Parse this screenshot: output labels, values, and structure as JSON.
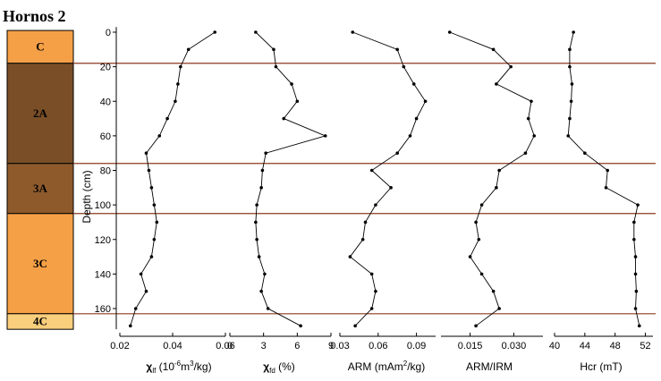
{
  "site_title": "Hornos 2",
  "y_axis": {
    "label": "Depth (cm)",
    "range": [
      -5,
      172
    ],
    "ticks": [
      0,
      20,
      40,
      60,
      80,
      100,
      120,
      140,
      160
    ]
  },
  "horizons": [
    {
      "label": "C",
      "top": -1,
      "bottom": 18,
      "color": "#F5A046"
    },
    {
      "label": "2A",
      "top": 18,
      "bottom": 76,
      "color": "#7A4E27"
    },
    {
      "label": "3A",
      "top": 76,
      "bottom": 105,
      "color": "#8E5A2C"
    },
    {
      "label": "3C",
      "top": 105,
      "bottom": 163,
      "color": "#F5A046"
    },
    {
      "label": "4C",
      "top": 163,
      "bottom": 172,
      "color": "#F9CE7C"
    }
  ],
  "chart_data": [
    {
      "type": "line",
      "xlabel_parts": [
        "χ",
        "lf",
        " (10",
        "-6",
        "m",
        "3",
        "/kg)"
      ],
      "xlim": [
        0.02,
        0.06
      ],
      "xticks": [
        "0.02",
        "0.04",
        "0.06"
      ],
      "xtick_values": [
        0.02,
        0.04,
        0.06
      ],
      "y": [
        0,
        10,
        20,
        30,
        40,
        50,
        60,
        70,
        80,
        90,
        100,
        110,
        120,
        130,
        140,
        150,
        160,
        170
      ],
      "x": [
        0.056,
        0.046,
        0.043,
        0.042,
        0.041,
        0.038,
        0.035,
        0.03,
        0.031,
        0.032,
        0.033,
        0.034,
        0.033,
        0.032,
        0.028,
        0.03,
        0.026,
        0.024
      ]
    },
    {
      "type": "line",
      "xlabel_parts": [
        "χ",
        "fd",
        " (%)"
      ],
      "xlim": [
        0,
        9
      ],
      "xticks": [
        "0",
        "3",
        "6",
        "9"
      ],
      "xtick_values": [
        0,
        3,
        6,
        9
      ],
      "y": [
        0,
        10,
        20,
        30,
        40,
        50,
        60,
        70,
        80,
        90,
        100,
        110,
        120,
        130,
        140,
        150,
        160,
        170
      ],
      "x": [
        2.3,
        3.9,
        4.1,
        5.5,
        6.0,
        4.8,
        8.5,
        3.2,
        2.9,
        2.8,
        2.4,
        2.3,
        2.4,
        2.6,
        3.1,
        2.8,
        3.4,
        6.3
      ]
    },
    {
      "type": "line",
      "xlabel_parts": [
        "ARM (mAm",
        "2",
        "/kg)"
      ],
      "xlim": [
        0.03,
        0.105
      ],
      "xticks": [
        "0.03",
        "0.06",
        "0.09"
      ],
      "xtick_values": [
        0.03,
        0.06,
        0.09
      ],
      "y": [
        0,
        10,
        20,
        30,
        40,
        50,
        60,
        70,
        80,
        90,
        100,
        110,
        120,
        130,
        140,
        150,
        160,
        170
      ],
      "x": [
        0.04,
        0.075,
        0.08,
        0.088,
        0.097,
        0.09,
        0.085,
        0.075,
        0.055,
        0.07,
        0.058,
        0.05,
        0.048,
        0.038,
        0.055,
        0.058,
        0.055,
        0.042
      ]
    },
    {
      "type": "line",
      "xlabel_parts": [
        "ARM/IRM"
      ],
      "xlim": [
        0.005,
        0.04
      ],
      "xticks": [
        "0.015",
        "0.030"
      ],
      "xtick_values": [
        0.015,
        0.03
      ],
      "y": [
        0,
        10,
        20,
        30,
        40,
        50,
        60,
        70,
        80,
        90,
        100,
        110,
        120,
        130,
        140,
        150,
        160,
        170
      ],
      "x": [
        0.008,
        0.023,
        0.029,
        0.024,
        0.036,
        0.035,
        0.037,
        0.034,
        0.025,
        0.024,
        0.019,
        0.017,
        0.018,
        0.015,
        0.019,
        0.023,
        0.025,
        0.017
      ]
    },
    {
      "type": "line",
      "xlabel_parts": [
        "Hcr (mT)"
      ],
      "xlim": [
        40,
        53
      ],
      "xticks": [
        "40",
        "44",
        "48",
        "52"
      ],
      "xtick_values": [
        40,
        44,
        48,
        52
      ],
      "y": [
        0,
        10,
        20,
        30,
        40,
        50,
        60,
        70,
        80,
        90,
        100,
        110,
        120,
        130,
        140,
        150,
        160,
        170
      ],
      "x": [
        42.5,
        42.0,
        42.0,
        42.3,
        42.2,
        42.0,
        41.8,
        44.0,
        47.0,
        46.8,
        51.0,
        50.5,
        50.5,
        50.7,
        50.7,
        50.8,
        50.7,
        51.2
      ]
    }
  ],
  "boundary_depths": [
    18,
    76,
    105,
    163
  ]
}
